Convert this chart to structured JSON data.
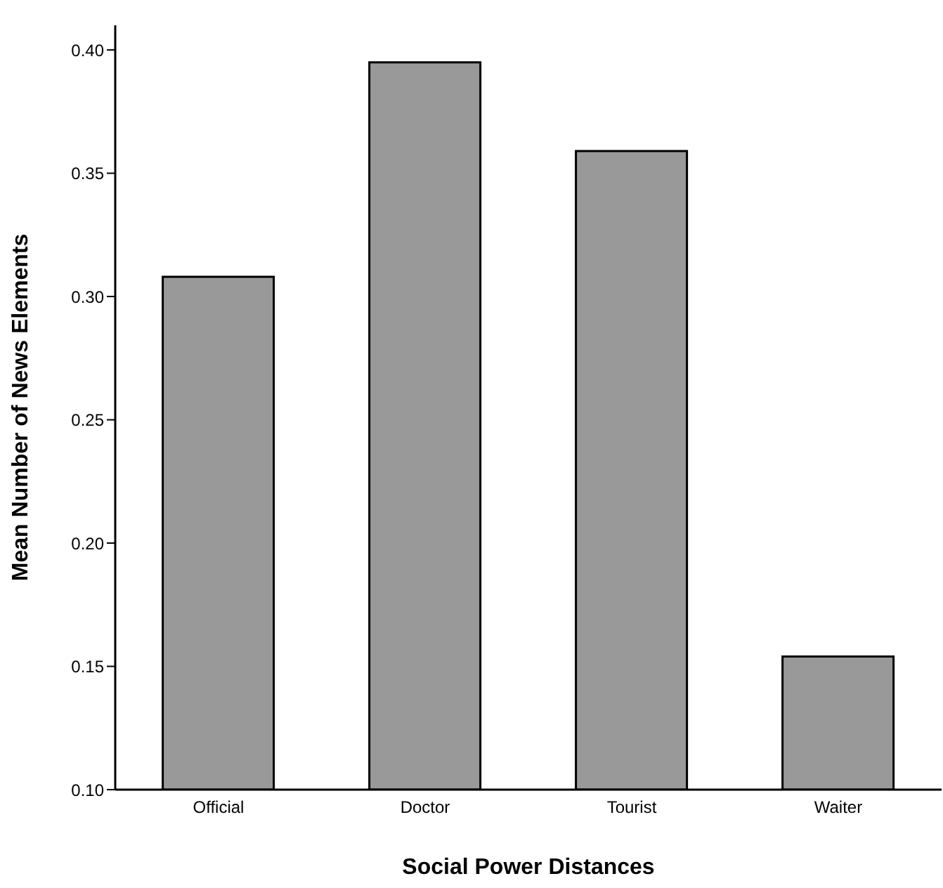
{
  "chart_data": {
    "type": "bar",
    "xlabel": "Social Power Distances",
    "ylabel": "Mean Number of News Elements",
    "categories": [
      "Official",
      "Doctor",
      "Tourist",
      "Waiter"
    ],
    "values": [
      0.308,
      0.395,
      0.359,
      0.154
    ],
    "color": "#999999",
    "ylim": [
      0.1,
      0.41
    ],
    "yticks": [
      {
        "value": 0.1,
        "label": "0.10"
      },
      {
        "value": 0.15,
        "label": "0.15"
      },
      {
        "value": 0.2,
        "label": "0.20"
      },
      {
        "value": 0.25,
        "label": "0.25"
      },
      {
        "value": 0.3,
        "label": "0.30"
      },
      {
        "value": 0.35,
        "label": "0.35"
      },
      {
        "value": 0.4,
        "label": "0.40"
      }
    ],
    "grid": false
  }
}
